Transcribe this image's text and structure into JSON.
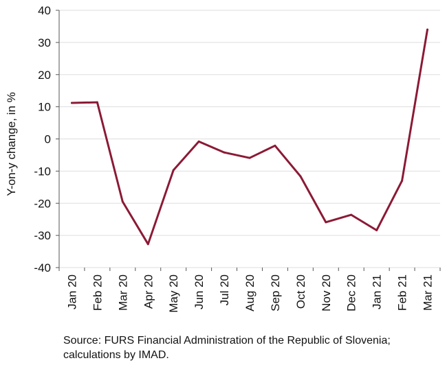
{
  "chart_data": {
    "type": "line",
    "ylabel": "Y-on-y change, in %",
    "xlabel": "",
    "ylim": [
      -40,
      40
    ],
    "yticks": [
      40,
      30,
      20,
      10,
      0,
      -10,
      -20,
      -30,
      -40
    ],
    "categories": [
      "Jan 20",
      "Feb 20",
      "Mar 20",
      "Apr 20",
      "May 20",
      "Jun 20",
      "Jul 20",
      "Aug 20",
      "Sep 20",
      "Oct 20",
      "Nov 20",
      "Dec 20",
      "Jan 21",
      "Feb 21",
      "Mar 21"
    ],
    "series": [
      {
        "values": [
          11.2,
          11.4,
          -19.5,
          -32.7,
          -9.7,
          -0.8,
          -4.2,
          -5.9,
          -2.1,
          -11.6,
          -25.9,
          -23.6,
          -28.4,
          -13.0,
          34.0
        ],
        "color": "#8b1a35"
      }
    ],
    "grid": true,
    "gridColor": "#dddddd",
    "legend": "none"
  },
  "source": "Source: FURS Financial Administration of the Republic of Slovenia; calculations by IMAD."
}
